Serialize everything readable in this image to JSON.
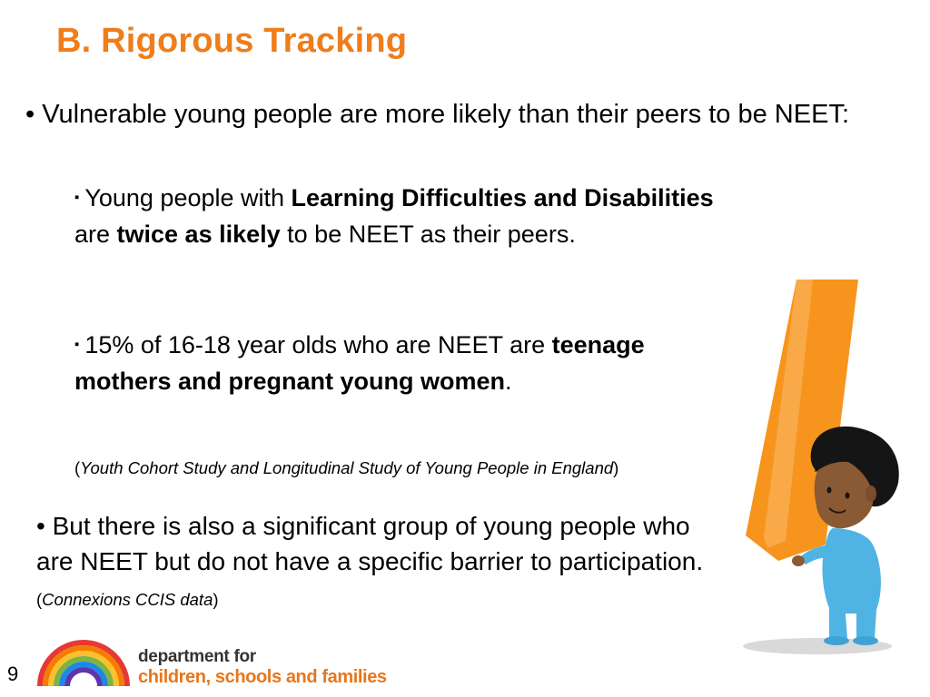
{
  "slide": {
    "title": "B. Rigorous Tracking",
    "page_number": "9"
  },
  "point1": {
    "bullet": "•",
    "text": "Vulnerable young people are more likely than their peers to be NEET:"
  },
  "sub1": {
    "bullet": "▪",
    "t1": "Young people with ",
    "b1": "Learning Difficulties and Disabilities",
    "t2": " are ",
    "b2": "twice as likely",
    "t3": " to be NEET as their peers."
  },
  "sub2": {
    "bullet": "▪",
    "t1": "15% of 16-18  year olds who are NEET are ",
    "b1": "teenage mothers and pregnant young women",
    "t2": "."
  },
  "source1": {
    "open": "(",
    "text": "Youth Cohort Study and Longitudinal Study of Young People in England",
    "close": ")"
  },
  "point2": {
    "bullet": "•",
    "text": "But there is also a significant group of young people who are NEET but do not have a specific barrier to participation.",
    "open": "(",
    "source": "Connexions CCIS data",
    "close": ")"
  },
  "logo": {
    "line1": "department for",
    "line2": "children, schools and families"
  },
  "colors": {
    "title": "#ef7d1a",
    "brand_orange": "#e8761a",
    "exclamation": "#f7941d",
    "figure_blue": "#4fb3e3"
  },
  "icons": {
    "logo": "rainbow-logo-icon",
    "illustration": "child-with-exclamation-icon"
  }
}
